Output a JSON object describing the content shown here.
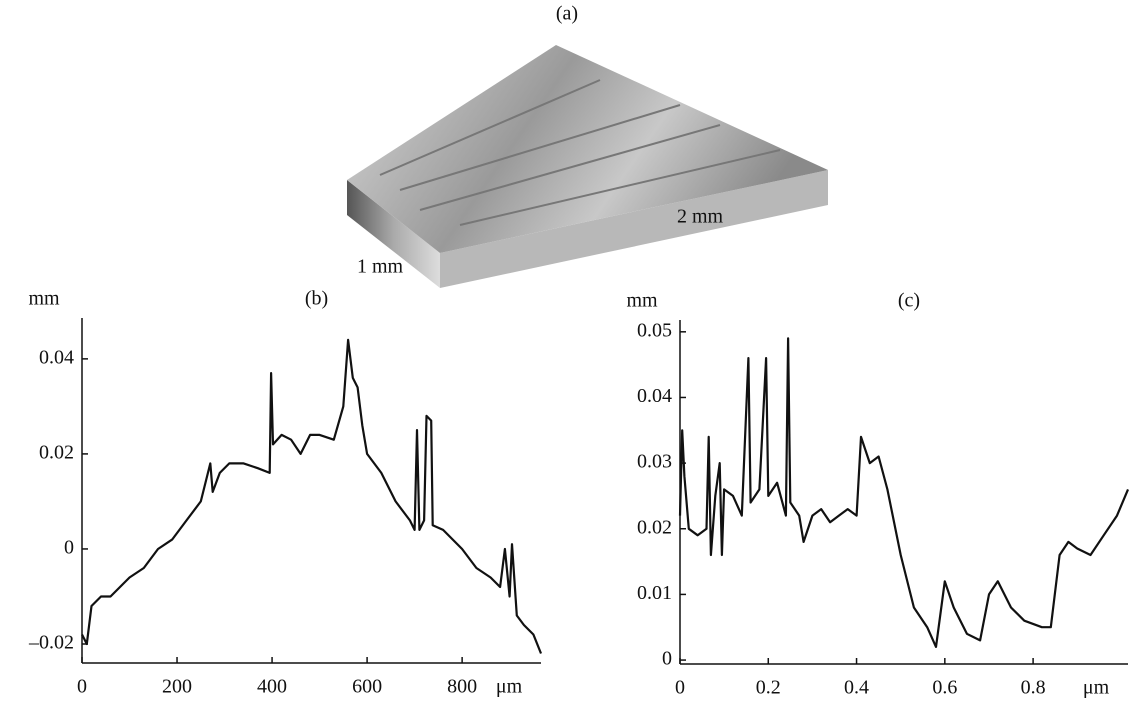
{
  "panel_a": {
    "label": "(a)",
    "width_label": "1 mm",
    "length_label": "2 mm"
  },
  "chart_data": [
    {
      "type": "line",
      "title": "(b)",
      "y_label": "mm",
      "x_label": "μm",
      "color": "#111111",
      "x": [
        0,
        10,
        20,
        40,
        60,
        80,
        100,
        130,
        160,
        190,
        220,
        250,
        270,
        275,
        290,
        310,
        340,
        370,
        395,
        398,
        402,
        420,
        440,
        460,
        480,
        500,
        530,
        550,
        560,
        570,
        580,
        590,
        600,
        630,
        660,
        690,
        700,
        705,
        710,
        720,
        725,
        735,
        738,
        760,
        800,
        830,
        860,
        880,
        890,
        900,
        905,
        915,
        930,
        950,
        966
      ],
      "values": [
        -0.018,
        -0.02,
        -0.012,
        -0.01,
        -0.01,
        -0.008,
        -0.006,
        -0.004,
        0.0,
        0.002,
        0.006,
        0.01,
        0.018,
        0.012,
        0.016,
        0.018,
        0.018,
        0.017,
        0.016,
        0.037,
        0.022,
        0.024,
        0.023,
        0.02,
        0.024,
        0.024,
        0.023,
        0.03,
        0.044,
        0.036,
        0.034,
        0.026,
        0.02,
        0.016,
        0.01,
        0.006,
        0.004,
        0.025,
        0.004,
        0.006,
        0.028,
        0.027,
        0.005,
        0.004,
        0.0,
        -0.004,
        -0.006,
        -0.008,
        0.0,
        -0.01,
        0.001,
        -0.014,
        -0.016,
        -0.018,
        -0.022
      ],
      "xlim": [
        0,
        966
      ],
      "xticks": [
        0,
        200,
        400,
        600,
        800
      ],
      "ylim": [
        -0.024,
        0.0486
      ],
      "yticks": [
        {
          "value": -0.02,
          "label": "–0.02"
        },
        0,
        0.02,
        0.04
      ]
    },
    {
      "type": "line",
      "title": "(c)",
      "y_label": "mm",
      "x_label": "μm",
      "color": "#111111",
      "x": [
        0,
        0.005,
        0.01,
        0.02,
        0.04,
        0.06,
        0.065,
        0.07,
        0.08,
        0.09,
        0.095,
        0.1,
        0.12,
        0.14,
        0.155,
        0.16,
        0.18,
        0.195,
        0.2,
        0.22,
        0.24,
        0.245,
        0.25,
        0.27,
        0.28,
        0.3,
        0.32,
        0.34,
        0.36,
        0.38,
        0.4,
        0.41,
        0.43,
        0.45,
        0.47,
        0.5,
        0.53,
        0.56,
        0.58,
        0.6,
        0.62,
        0.65,
        0.68,
        0.7,
        0.72,
        0.75,
        0.78,
        0.82,
        0.84,
        0.86,
        0.88,
        0.9,
        0.93,
        0.96,
        0.99,
        1.015
      ],
      "values": [
        0.022,
        0.035,
        0.028,
        0.02,
        0.019,
        0.02,
        0.034,
        0.016,
        0.025,
        0.03,
        0.016,
        0.026,
        0.025,
        0.022,
        0.046,
        0.024,
        0.026,
        0.046,
        0.025,
        0.027,
        0.022,
        0.049,
        0.024,
        0.022,
        0.018,
        0.022,
        0.023,
        0.021,
        0.022,
        0.023,
        0.022,
        0.034,
        0.03,
        0.031,
        0.026,
        0.016,
        0.008,
        0.005,
        0.002,
        0.012,
        0.008,
        0.004,
        0.003,
        0.01,
        0.012,
        0.008,
        0.006,
        0.005,
        0.005,
        0.016,
        0.018,
        0.017,
        0.016,
        0.019,
        0.022,
        0.026
      ],
      "xlim": [
        0,
        1.015
      ],
      "xticks": [
        0,
        0.2,
        0.4,
        0.6,
        0.8
      ],
      "ylim": [
        -0.0006,
        0.0518
      ],
      "yticks": [
        0,
        0.01,
        0.02,
        0.03,
        0.04,
        0.05
      ]
    }
  ]
}
